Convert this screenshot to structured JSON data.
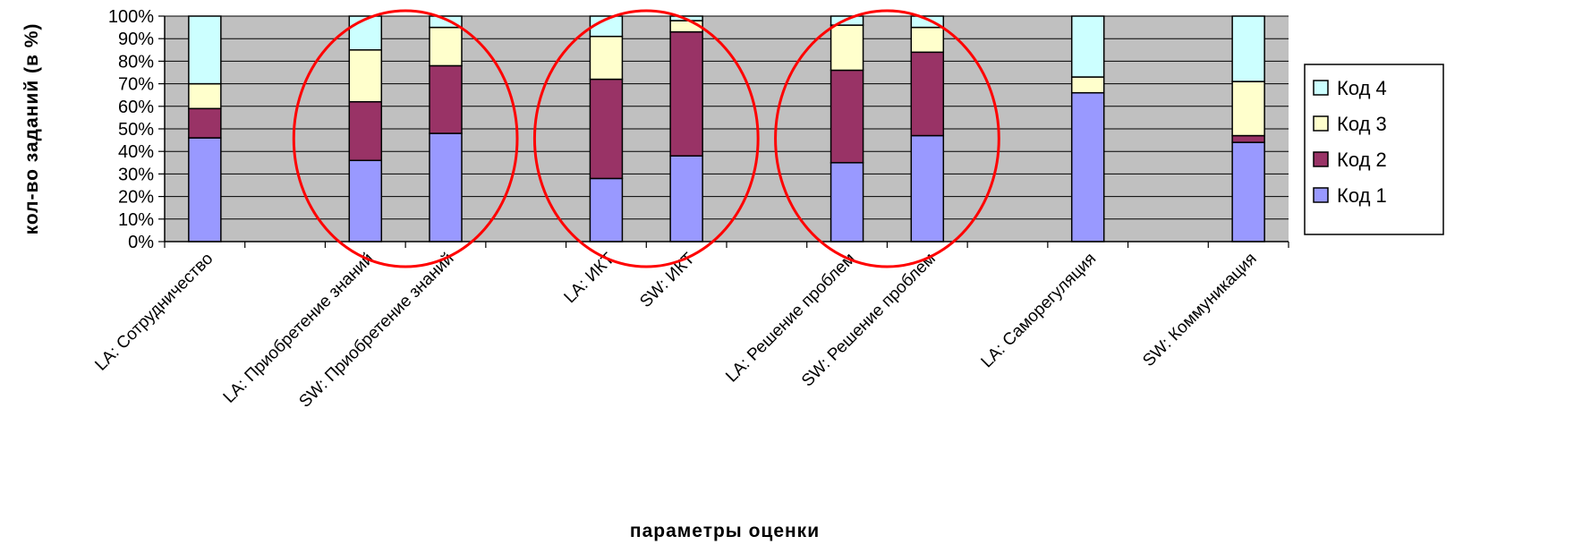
{
  "chart_data": {
    "type": "bar",
    "stacked": true,
    "percent": true,
    "xlabel": "параметры оценки",
    "ylabel": "кол-во заданий (в %)",
    "ylim": [
      0,
      100
    ],
    "yticks": [
      "0%",
      "10%",
      "20%",
      "30%",
      "40%",
      "50%",
      "60%",
      "70%",
      "80%",
      "90%",
      "100%"
    ],
    "grid": true,
    "legend_position": "right",
    "slots": [
      "LA: Сотрудничество",
      "",
      "LA: Приобретение знаний",
      "SW: Приобретение знаний",
      "",
      "LA: ИКТ",
      "SW: ИКТ",
      "",
      "LA: Решение проблем",
      "SW: Решение проблем",
      "",
      "LA: Саморегуляция",
      "",
      "SW: Коммуникация"
    ],
    "categories": [
      "LA: Сотрудничество",
      "LA: Приобретение знаний",
      "SW: Приобретение знаний",
      "LA: ИКТ",
      "SW: ИКТ",
      "LA: Решение проблем",
      "SW: Решение проблем",
      "LA: Саморегуляция",
      "SW: Коммуникация"
    ],
    "series": [
      {
        "name": "Код 1",
        "color": "#9999ff",
        "values": [
          46,
          36,
          48,
          28,
          38,
          35,
          47,
          66,
          44
        ]
      },
      {
        "name": "Код 2",
        "color": "#993366",
        "values": [
          13,
          26,
          30,
          44,
          55,
          41,
          37,
          0,
          3
        ]
      },
      {
        "name": "Код 3",
        "color": "#ffffcc",
        "values": [
          11,
          23,
          17,
          19,
          5,
          20,
          11,
          7,
          24
        ]
      },
      {
        "name": "Код 4",
        "color": "#ccffff",
        "values": [
          30,
          15,
          5,
          9,
          2,
          4,
          5,
          27,
          29
        ]
      }
    ],
    "plot_background": "#c0c0c0",
    "highlights": [
      {
        "shape": "ellipse",
        "color": "#ff0000",
        "covers": [
          "LA: Приобретение знаний",
          "SW: Приобретение знаний"
        ]
      },
      {
        "shape": "ellipse",
        "color": "#ff0000",
        "covers": [
          "LA: ИКТ",
          "SW: ИКТ"
        ]
      },
      {
        "shape": "ellipse",
        "color": "#ff0000",
        "covers": [
          "LA: Решение проблем",
          "SW: Решение проблем"
        ]
      }
    ]
  }
}
